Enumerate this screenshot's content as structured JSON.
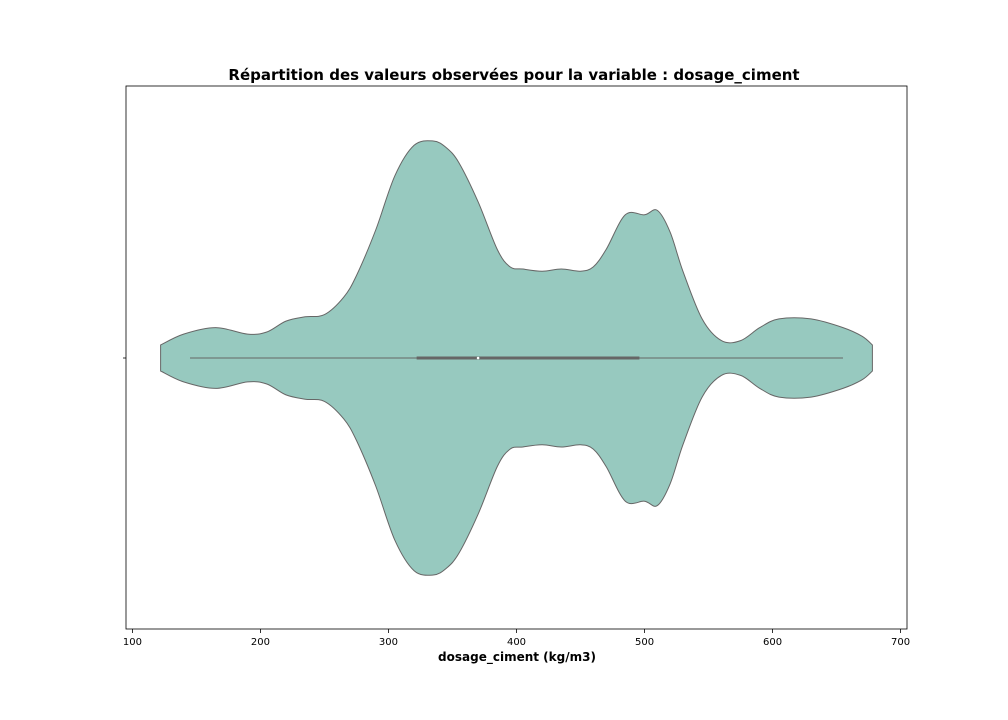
{
  "chart_data": {
    "type": "violin",
    "title": "Répartition des valeurs observées pour la variable : dosage_ciment",
    "xlabel": "dosage_ciment  (kg/m3)",
    "ylabel": "",
    "xlim": [
      95,
      705
    ],
    "xticks": [
      100,
      200,
      300,
      400,
      500,
      600,
      700
    ],
    "grid": false,
    "fill_color": "#97c9bf",
    "edge_color": "#666666",
    "density": {
      "x": [
        122,
        140,
        165,
        190,
        205,
        220,
        235,
        250,
        265,
        275,
        290,
        305,
        320,
        335,
        345,
        355,
        370,
        385,
        395,
        405,
        420,
        435,
        450,
        460,
        470,
        485,
        500,
        510,
        520,
        530,
        545,
        560,
        575,
        590,
        605,
        630,
        655,
        670,
        678
      ],
      "width": [
        0.06,
        0.11,
        0.14,
        0.11,
        0.12,
        0.17,
        0.19,
        0.2,
        0.28,
        0.38,
        0.59,
        0.84,
        0.98,
        1.0,
        0.97,
        0.9,
        0.72,
        0.5,
        0.42,
        0.41,
        0.4,
        0.41,
        0.4,
        0.42,
        0.5,
        0.66,
        0.66,
        0.68,
        0.58,
        0.4,
        0.18,
        0.08,
        0.08,
        0.14,
        0.18,
        0.18,
        0.14,
        0.1,
        0.06
      ]
    },
    "box": {
      "whisker_low": 145,
      "q1": 322,
      "median": 370,
      "q3": 496,
      "whisker_high": 655
    }
  }
}
